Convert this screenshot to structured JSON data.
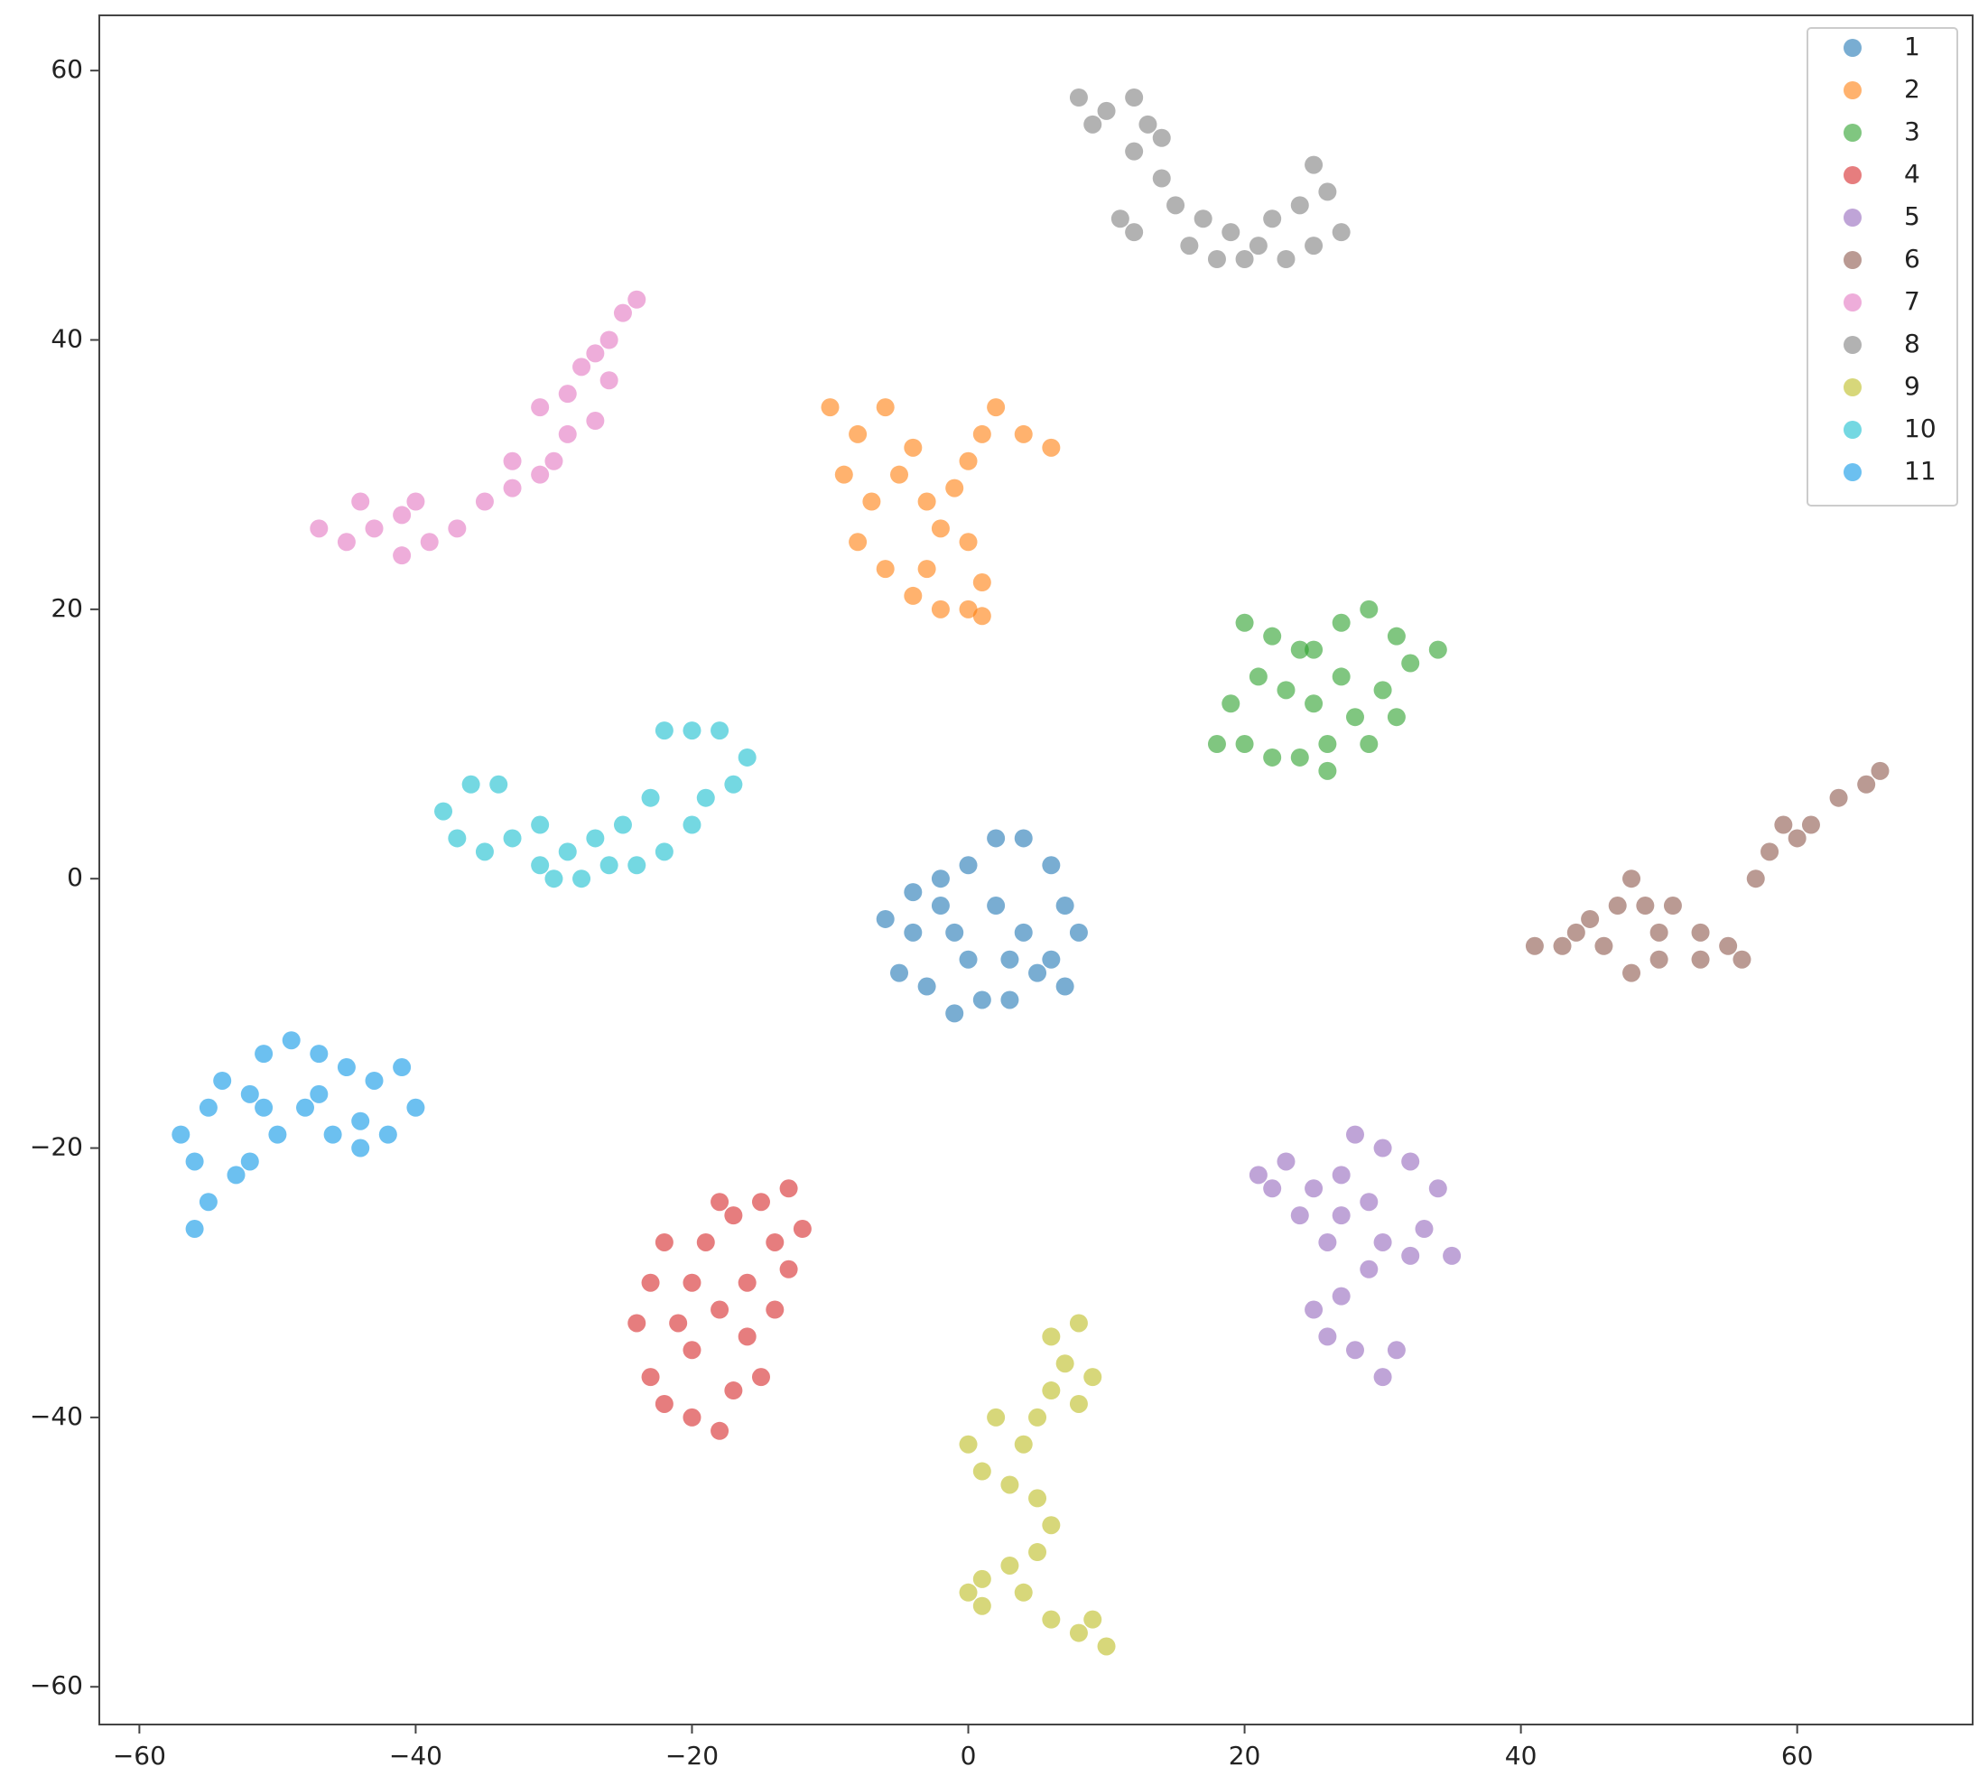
{
  "chart_data": {
    "type": "scatter",
    "xlim": [
      -62.9,
      72.7
    ],
    "ylim": [
      -62.8,
      64.1
    ],
    "xticks": [
      {
        "value": -60,
        "label": "−60"
      },
      {
        "value": -40,
        "label": "−40"
      },
      {
        "value": -20,
        "label": "−20"
      },
      0,
      20,
      40,
      60
    ],
    "yticks": [
      {
        "value": -60,
        "label": "−60"
      },
      {
        "value": -40,
        "label": "−40"
      },
      {
        "value": -20,
        "label": "−20"
      },
      0,
      20,
      40,
      60
    ],
    "grid": false,
    "legend": "upper right",
    "series": [
      {
        "name": "1",
        "color": "#1f77b4",
        "x": [
          -6,
          -4,
          -2,
          0,
          2,
          4,
          6,
          7,
          8,
          6,
          7,
          5,
          3,
          1,
          -1,
          -3,
          -5,
          -4,
          -1,
          2,
          4,
          0,
          3,
          -2
        ],
        "y": [
          -3,
          -1,
          0,
          1,
          3,
          3,
          1,
          -2,
          -4,
          -6,
          -8,
          -7,
          -6,
          -9,
          -10,
          -8,
          -7,
          -4,
          -4,
          -2,
          -4,
          -6,
          -9,
          -2
        ]
      },
      {
        "name": "2",
        "color": "#ff7f0e",
        "x": [
          -10,
          -8,
          -6,
          -4,
          -9,
          -7,
          -5,
          -3,
          -8,
          -6,
          -4,
          -2,
          0,
          1,
          0,
          -2,
          -1,
          1,
          2,
          4,
          6,
          0,
          -3,
          1
        ],
        "y": [
          35,
          33,
          35,
          32,
          30,
          28,
          30,
          28,
          25,
          23,
          21,
          20,
          20,
          22,
          25,
          26,
          29,
          33,
          35,
          33,
          32,
          31,
          23,
          19.5
        ]
      },
      {
        "name": "3",
        "color": "#2ca02c",
        "x": [
          20,
          22,
          25,
          27,
          29,
          31,
          34,
          32,
          30,
          28,
          26,
          24,
          22,
          20,
          18,
          19,
          21,
          23,
          25,
          27,
          29,
          31,
          24,
          26
        ],
        "y": [
          19,
          18,
          17,
          19,
          20,
          18,
          17,
          16,
          14,
          12,
          10,
          9,
          9,
          10,
          10,
          13,
          15,
          14,
          13,
          15,
          10,
          12,
          17,
          8
        ]
      },
      {
        "name": "4",
        "color": "#d62728",
        "x": [
          -22,
          -23,
          -24,
          -23,
          -22,
          -20,
          -18,
          -17,
          -15,
          -16,
          -18,
          -20,
          -19,
          -17,
          -15,
          -13,
          -12,
          -13,
          -14,
          -16,
          -20,
          -21,
          -18,
          -14
        ],
        "y": [
          -27,
          -30,
          -33,
          -37,
          -39,
          -40,
          -41,
          -38,
          -37,
          -34,
          -32,
          -30,
          -27,
          -25,
          -24,
          -23,
          -26,
          -29,
          -32,
          -30,
          -35,
          -33,
          -24,
          -27
        ]
      },
      {
        "name": "5",
        "color": "#9467bd",
        "x": [
          21,
          23,
          25,
          27,
          28,
          30,
          32,
          34,
          33,
          35,
          32,
          30,
          29,
          27,
          25,
          26,
          28,
          30,
          31,
          27,
          24,
          29,
          22,
          26
        ],
        "y": [
          -22,
          -21,
          -23,
          -22,
          -19,
          -20,
          -21,
          -23,
          -26,
          -28,
          -28,
          -27,
          -29,
          -31,
          -32,
          -34,
          -35,
          -37,
          -35,
          -25,
          -25,
          -24,
          -23,
          -27
        ]
      },
      {
        "name": "6",
        "color": "#8c564b",
        "x": [
          41,
          43,
          45,
          47,
          48,
          49,
          51,
          53,
          55,
          56,
          53,
          50,
          48,
          46,
          44,
          50,
          57,
          58,
          59,
          61,
          63,
          65,
          66,
          60
        ],
        "y": [
          -5,
          -5,
          -3,
          -2,
          0,
          -2,
          -2,
          -4,
          -5,
          -6,
          -6,
          -6,
          -7,
          -5,
          -4,
          -4,
          0,
          2,
          4,
          4,
          6,
          7,
          8,
          3
        ]
      },
      {
        "name": "7",
        "color": "#e377c2",
        "x": [
          -47,
          -45,
          -43,
          -41,
          -40,
          -39,
          -37,
          -35,
          -33,
          -31,
          -33,
          -30,
          -31,
          -29,
          -28,
          -27,
          -26,
          -25,
          -24,
          -27,
          -29,
          -41,
          -44,
          -26
        ],
        "y": [
          26,
          25,
          26,
          27,
          28,
          25,
          26,
          28,
          29,
          30,
          31,
          31,
          35,
          36,
          38,
          39,
          40,
          42,
          43,
          34,
          33,
          24,
          28,
          37
        ]
      },
      {
        "name": "8",
        "color": "#7f7f7f",
        "x": [
          8,
          10,
          12,
          13,
          12,
          14,
          15,
          17,
          19,
          21,
          23,
          25,
          27,
          26,
          25,
          22,
          20,
          18,
          16,
          12,
          11,
          14,
          9,
          24
        ],
        "y": [
          58,
          57,
          58,
          56,
          54,
          52,
          50,
          49,
          48,
          47,
          46,
          47,
          48,
          51,
          53,
          49,
          46,
          46,
          47,
          48,
          49,
          55,
          56,
          50
        ]
      },
      {
        "name": "9",
        "color": "#bcbd22",
        "x": [
          6,
          8,
          7,
          9,
          8,
          6,
          5,
          4,
          2,
          0,
          1,
          3,
          5,
          6,
          5,
          3,
          1,
          0,
          1,
          4,
          6,
          8,
          9,
          10
        ],
        "y": [
          -34,
          -33,
          -36,
          -37,
          -39,
          -38,
          -40,
          -42,
          -40,
          -42,
          -44,
          -45,
          -46,
          -48,
          -50,
          -51,
          -52,
          -53,
          -54,
          -53,
          -55,
          -56,
          -55,
          -57
        ]
      },
      {
        "name": "10",
        "color": "#17becf",
        "x": [
          -38,
          -36,
          -34,
          -37,
          -35,
          -33,
          -31,
          -29,
          -28,
          -26,
          -24,
          -22,
          -20,
          -19,
          -17,
          -16,
          -18,
          -20,
          -22,
          -23,
          -25,
          -27,
          -31,
          -30
        ],
        "y": [
          5,
          7,
          7,
          3,
          2,
          3,
          1,
          2,
          0,
          1,
          1,
          2,
          4,
          6,
          7,
          9,
          11,
          11,
          11,
          6,
          4,
          3,
          4,
          0
        ]
      },
      {
        "name": "11",
        "color": "#0a96e6",
        "x": [
          -56,
          -55,
          -56,
          -57,
          -55,
          -54,
          -52,
          -51,
          -49,
          -47,
          -45,
          -43,
          -41,
          -40,
          -42,
          -44,
          -46,
          -48,
          -50,
          -52,
          -53,
          -47,
          -44,
          -51
        ],
        "y": [
          -26,
          -24,
          -21,
          -19,
          -17,
          -15,
          -16,
          -13,
          -12,
          -13,
          -14,
          -15,
          -14,
          -17,
          -19,
          -20,
          -19,
          -17,
          -19,
          -21,
          -22,
          -16,
          -18,
          -17
        ]
      }
    ]
  }
}
